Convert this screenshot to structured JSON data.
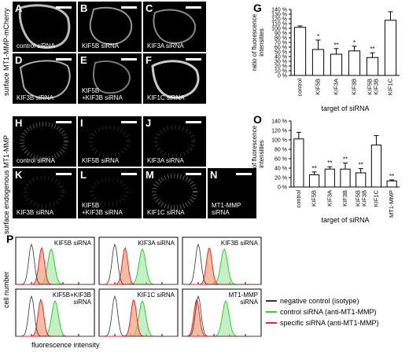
{
  "left_labels": {
    "top": "surface MT1-MMP-mCherry",
    "middle": "surface endogenous MT1-MMP",
    "bottom": "cell number",
    "xaxis": "fluorescence intensity"
  },
  "panels_top": [
    {
      "letter": "A",
      "caption": "control siRNA"
    },
    {
      "letter": "B",
      "caption": "KIF5B siRNA"
    },
    {
      "letter": "C",
      "caption": "KIF3A siRNA"
    },
    {
      "letter": "D",
      "caption": "KIF3B siRNA"
    },
    {
      "letter": "E",
      "caption": "KIF5B\n+KIF3B siRNA"
    },
    {
      "letter": "F",
      "caption": "KIF1C siRNA"
    }
  ],
  "panels_mid": [
    {
      "letter": "H",
      "caption": "control siRNA"
    },
    {
      "letter": "I",
      "caption": "KIF5B siRNA"
    },
    {
      "letter": "J",
      "caption": "KIF3A siRNA"
    },
    {
      "letter": "K",
      "caption": "KIF3B siRNA"
    },
    {
      "letter": "L",
      "caption": "KIF5B\n+KIF3B siRNA"
    },
    {
      "letter": "M",
      "caption": "KIF1C siRNA"
    },
    {
      "letter": "N",
      "caption": "MT1-MMP siRNA"
    }
  ],
  "hist": {
    "letter": "P",
    "panels": [
      "KIF5B siRNA",
      "KIF3A siRNA",
      "KIF3B siRNA",
      "KIF5B+KIF3B\nsiRNA",
      "KIF1C siRNA",
      "MT1-MMP\nsiRNA"
    ],
    "legend": [
      {
        "label": "negative control (isotype)",
        "color": "#333333"
      },
      {
        "label": "control siRNA (anti-MT1-MMP)",
        "color": "#33cc33"
      },
      {
        "label": "specific siRNA (anti-MT1-MMP)",
        "color": "#e8262a"
      }
    ]
  },
  "chart_data": [
    {
      "id": "G",
      "type": "bar",
      "ylabel": "ratio of fluorescence\nintensities",
      "xlabel": "target of siRNA",
      "categories": [
        "control",
        "KIF5B",
        "KIF3A",
        "KIF3B",
        "KIF5B\nKIF3B",
        "KIF1C"
      ],
      "values": [
        102,
        55,
        45,
        52,
        38,
        117
      ],
      "errors": [
        3,
        20,
        12,
        10,
        10,
        18
      ],
      "significance": [
        "",
        "*",
        "**",
        "*",
        "**",
        ""
      ],
      "ylim": [
        0,
        140
      ],
      "yticks": [
        "0 %",
        "10 %",
        "20 %",
        "30 %",
        "40 %",
        "50 %",
        "60 %",
        "70 %",
        "80 %",
        "90 %",
        "100 %",
        "110 %",
        "120 %",
        "130 %",
        "140 %"
      ],
      "grid": false
    },
    {
      "id": "O",
      "type": "bar",
      "ylabel": "ratio of fluorescence\nintensities",
      "xlabel": "target of siRNA",
      "categories": [
        "control",
        "KIF5B",
        "KIF3A",
        "KIF3B",
        "KIF5B\nKIF3B",
        "KIF1C",
        "MT1-MMP"
      ],
      "values": [
        102,
        26,
        38,
        38,
        30,
        89,
        13
      ],
      "errors": [
        14,
        6,
        5,
        13,
        9,
        20,
        2
      ],
      "significance": [
        "",
        "**",
        "**",
        "**",
        "**",
        "",
        "**"
      ],
      "ylim": [
        0,
        140
      ],
      "yticks": [
        "0 %",
        "20 %",
        "40 %",
        "60 %",
        "80 %",
        "100 %",
        "120 %",
        "140 %"
      ],
      "grid": false
    }
  ]
}
